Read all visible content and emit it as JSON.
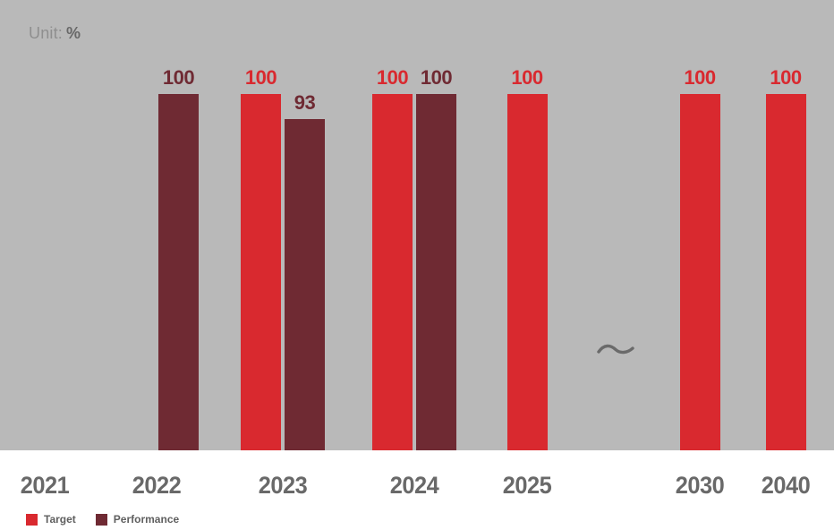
{
  "unit_label": {
    "prefix": "Unit:",
    "value": "%"
  },
  "colors": {
    "background": "#b9b9b9",
    "footer_background": "#ffffff",
    "target": "#d9292f",
    "performance": "#6f2a33",
    "axis_text": "#696969",
    "unit_prefix_text": "#8f8f8f",
    "unit_value_text": "#686868",
    "axis_break_squiggle": "#6a6a6a",
    "legend_text": "#5f5f5f"
  },
  "chart_data": {
    "type": "bar",
    "title": "",
    "unit": "%",
    "categories": [
      "2021",
      "2022",
      "2023",
      "2024",
      "2025",
      "2030",
      "2040"
    ],
    "series": [
      {
        "name": "Target",
        "color": "#d9292f",
        "values": [
          null,
          null,
          100,
          100,
          100,
          100,
          100
        ]
      },
      {
        "name": "Performance",
        "color": "#6f2a33",
        "values": [
          null,
          100,
          93,
          100,
          null,
          null,
          null
        ]
      }
    ],
    "ylim": [
      0,
      100
    ],
    "grid": false,
    "value_labels": true,
    "legend_position": "bottom-left",
    "axis_break": {
      "between": [
        "2025",
        "2030"
      ],
      "symbol": "~"
    }
  },
  "legend": {
    "items": [
      {
        "label": "Target",
        "color": "#d9292f"
      },
      {
        "label": "Performance",
        "color": "#6f2a33"
      }
    ]
  }
}
